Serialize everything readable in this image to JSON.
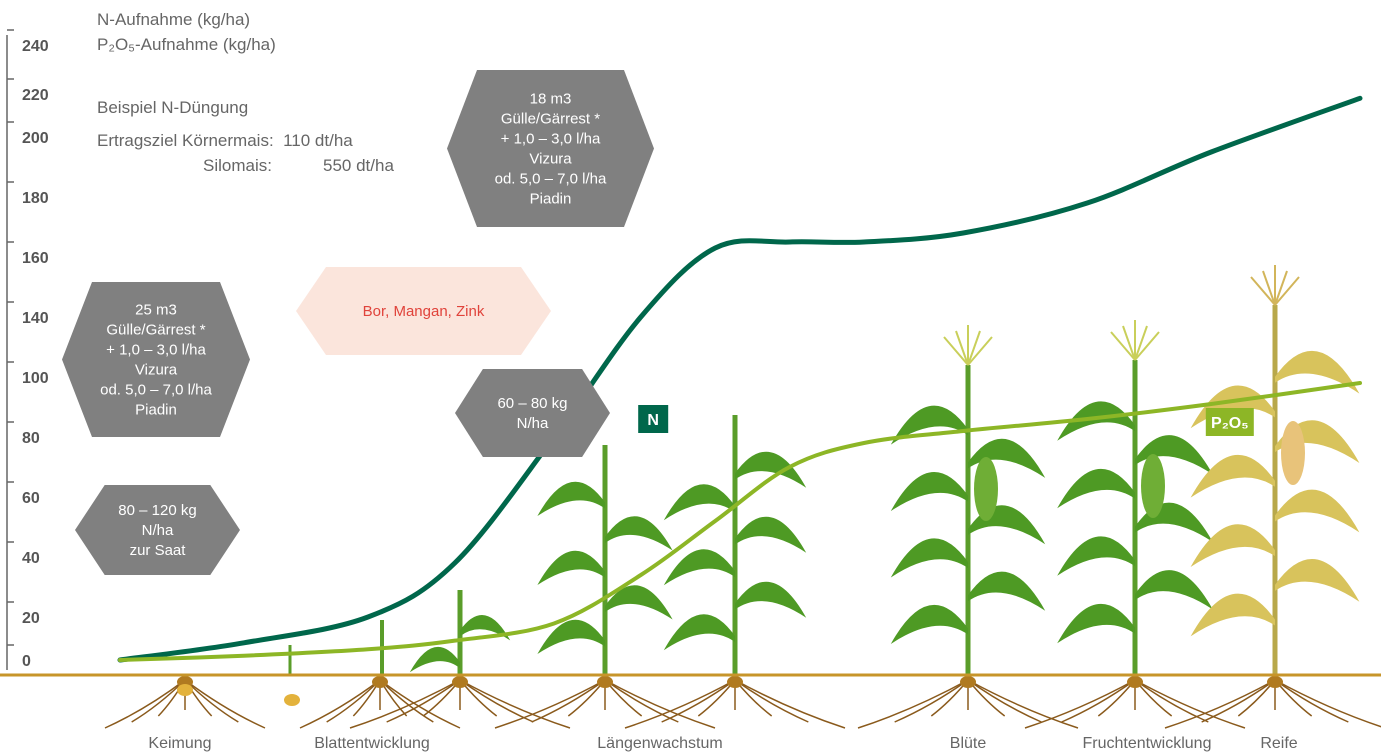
{
  "legend": {
    "n_label": "N-Aufnahme (kg/ha)",
    "p_label": "P₂O₅-Aufnahme (kg/ha)"
  },
  "example": {
    "title": "Beispiel N-Düngung",
    "line1": "Ertragsziel Körnermais:  110 dt/ha",
    "line2_label": "Silomais:",
    "line2_value": "550 dt/ha"
  },
  "hexagons": {
    "saat": [
      "80 – 120 kg",
      "N/ha",
      "zur Saat"
    ],
    "guelle25": [
      "25 m3",
      "Gülle/Gärrest *",
      "+ 1,0 – 3,0 l/ha",
      "Vizura",
      "od. 5,0 – 7,0 l/ha",
      "Piadin"
    ],
    "mikro": [
      "Bor, Mangan, Zink"
    ],
    "n6080": [
      "60 – 80 kg",
      "N/ha"
    ],
    "guelle18": [
      "18 m3",
      "Gülle/Gärrest *",
      "+ 1,0 – 3,0 l/ha",
      "Vizura",
      "od. 5,0 – 7,0 l/ha",
      "Piadin"
    ]
  },
  "colors": {
    "n_curve": "#00674b",
    "p_curve": "#8db626",
    "hexagon": "#808080",
    "hexagon_light": "#fbe5dc",
    "highlight_text": "#e0433b",
    "ground": "#c7952a",
    "leaf": "#4e9a24",
    "mature_leaf": "#d8c35c"
  },
  "chart_data": {
    "type": "line",
    "title": "",
    "xlabel": "",
    "ylabel": "",
    "ylim": [
      0,
      240
    ],
    "yticks": [
      0,
      20,
      40,
      60,
      80,
      100,
      140,
      160,
      180,
      200,
      220,
      240
    ],
    "stages": [
      "Keimung",
      "Blattentwicklung",
      "Längenwachstum",
      "Blüte",
      "Fruchtentwicklung",
      "Reife"
    ],
    "x_unit": "growth progress (0–100)",
    "series": [
      {
        "name": "N",
        "x": [
          0,
          10,
          20,
          27,
          35,
          42,
          48,
          54,
          60,
          68,
          78,
          88,
          100
        ],
        "y": [
          0,
          8,
          20,
          38,
          80,
          140,
          163,
          165,
          165,
          168,
          178,
          195,
          218
        ]
      },
      {
        "name": "P₂O₅",
        "x": [
          0,
          10,
          20,
          27,
          35,
          42,
          48,
          54,
          60,
          68,
          78,
          88,
          100
        ],
        "y": [
          0,
          2,
          5,
          9,
          17,
          34,
          52,
          70,
          78,
          82,
          86,
          91,
          98
        ]
      }
    ]
  }
}
